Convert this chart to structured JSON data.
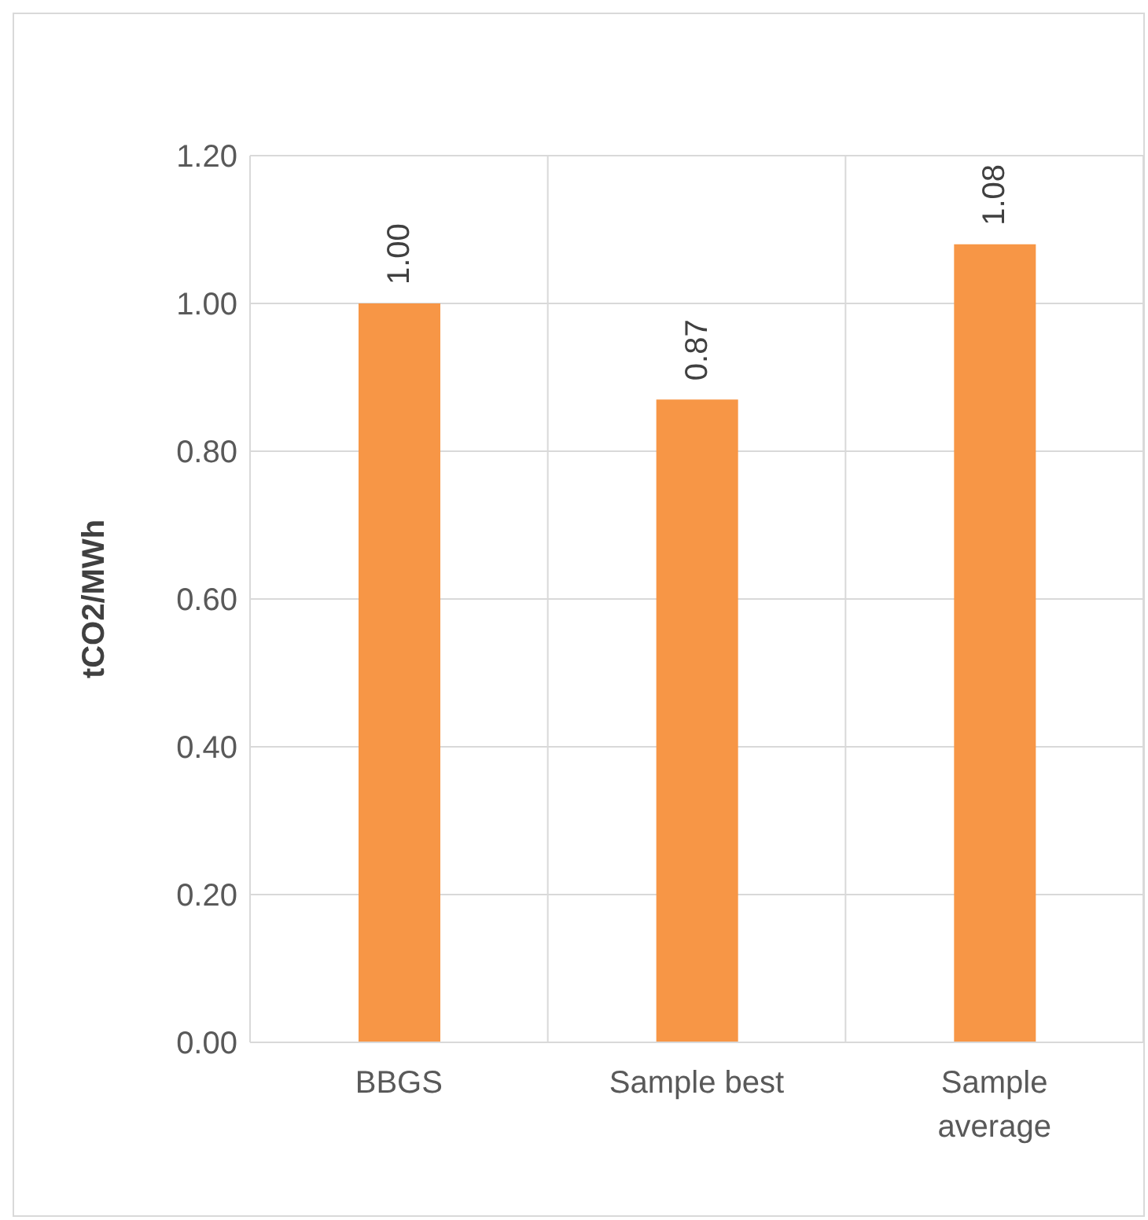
{
  "chart_data": {
    "type": "bar",
    "ylabel": "tCO2/MWh",
    "categories": [
      "BBGS",
      "Sample best",
      "Sample average"
    ],
    "values": [
      1.0,
      0.87,
      1.08
    ],
    "color": "#f79646",
    "value_labels": [
      "1.00",
      "0.87",
      "1.08"
    ],
    "ylim": [
      0,
      1.2
    ],
    "yticks": [
      {
        "value": 0,
        "label": "0.00"
      },
      {
        "value": 0.2,
        "label": "0.20"
      },
      {
        "value": 0.4,
        "label": "0.40"
      },
      {
        "value": 0.6,
        "label": "0.60"
      },
      {
        "value": 0.8,
        "label": "0.80"
      },
      {
        "value": 1.0,
        "label": "1.00"
      },
      {
        "value": 1.2,
        "label": "1.20"
      }
    ],
    "grid": true
  }
}
